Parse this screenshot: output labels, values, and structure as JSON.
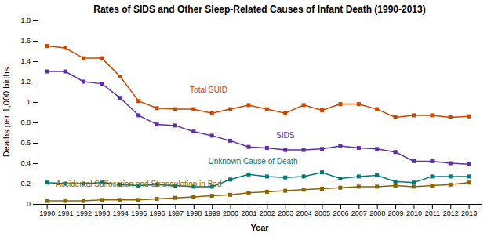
{
  "chart_data": {
    "type": "line",
    "title": "Rates of SIDS and Other Sleep-Related Causes of Infant Death (1990-2013)",
    "x_label": "Year",
    "y_label": "Deaths per 1,000 births",
    "x": [
      1990,
      1991,
      1992,
      1993,
      1994,
      1995,
      1996,
      1997,
      1998,
      1999,
      2000,
      2001,
      2002,
      2003,
      2004,
      2005,
      2006,
      2007,
      2008,
      2009,
      2010,
      2011,
      2012,
      2013
    ],
    "series": [
      {
        "color": "#C84800",
        "marker": "square",
        "values": [
          1.55,
          1.53,
          1.43,
          1.43,
          1.25,
          1.01,
          0.94,
          0.93,
          0.93,
          0.89,
          0.93,
          0.97,
          0.93,
          0.89,
          0.97,
          0.92,
          0.98,
          0.98,
          0.93,
          0.85,
          0.87,
          0.87,
          0.85,
          0.86
        ]
      },
      {
        "color": "#6030A0",
        "marker": "square",
        "values": [
          1.3,
          1.3,
          1.2,
          1.18,
          1.04,
          0.87,
          0.78,
          0.77,
          0.71,
          0.67,
          0.62,
          0.56,
          0.55,
          0.53,
          0.53,
          0.54,
          0.57,
          0.55,
          0.54,
          0.51,
          0.42,
          0.42,
          0.4,
          0.39
        ]
      },
      {
        "color": "#007878",
        "marker": "square",
        "values": [
          0.21,
          0.2,
          0.2,
          0.21,
          0.19,
          0.18,
          0.19,
          0.18,
          0.17,
          0.17,
          0.24,
          0.29,
          0.27,
          0.26,
          0.27,
          0.31,
          0.25,
          0.27,
          0.28,
          0.22,
          0.21,
          0.27,
          0.27,
          0.27
        ]
      },
      {
        "color": "#8B6400",
        "marker": "square",
        "values": [
          0.03,
          0.03,
          0.03,
          0.04,
          0.04,
          0.04,
          0.05,
          0.06,
          0.07,
          0.08,
          0.09,
          0.11,
          0.12,
          0.13,
          0.14,
          0.15,
          0.16,
          0.17,
          0.17,
          0.18,
          0.17,
          0.18,
          0.19,
          0.21
        ]
      }
    ],
    "annotations": [
      {
        "text": "Total SUID",
        "x": 1997.8,
        "y": 1.08,
        "color": "#C84800"
      },
      {
        "text": "SIDS",
        "x": 2002.5,
        "y": 0.63,
        "color": "#6030A0"
      },
      {
        "text": "Unknown Cause of Death",
        "x": 1998.8,
        "y": 0.38,
        "color": "#007878"
      },
      {
        "text": "Accidental Suffocation and Strangulation in Bed",
        "x": 1990.5,
        "y": 0.155,
        "color": "#8B6400"
      }
    ],
    "xlim": [
      1989.5,
      2013.7
    ],
    "xticks": [
      1990,
      1991,
      1992,
      1993,
      1994,
      1995,
      1996,
      1997,
      1998,
      1999,
      2000,
      2001,
      2002,
      2003,
      2004,
      2005,
      2006,
      2007,
      2008,
      2009,
      2010,
      2011,
      2012,
      2013
    ],
    "ylim": [
      0,
      1.8
    ],
    "yticks": [
      0,
      0.2,
      0.4,
      0.6,
      0.8,
      1,
      1.2,
      1.4,
      1.6,
      1.8
    ],
    "grid": false
  }
}
